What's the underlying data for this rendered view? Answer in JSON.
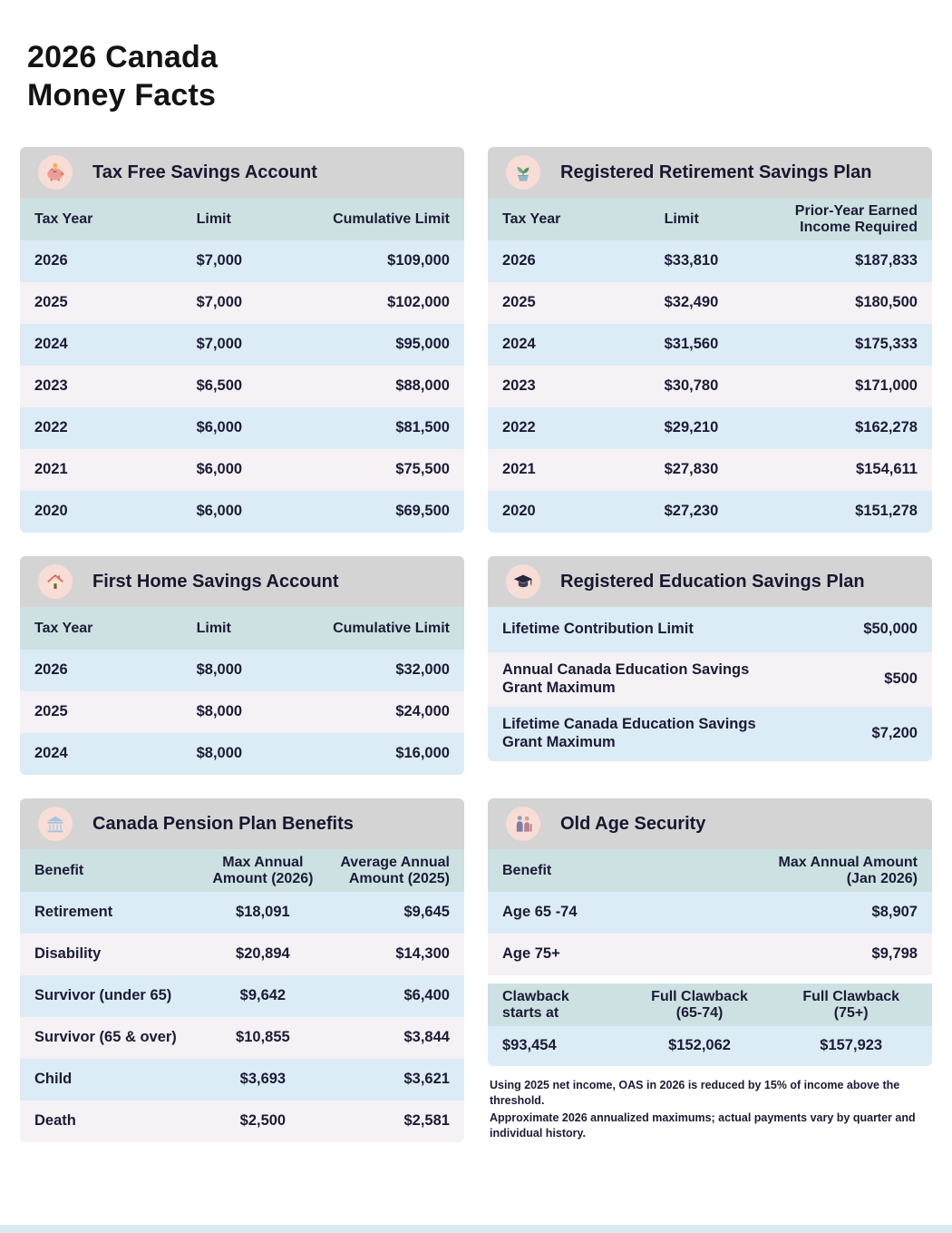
{
  "page": {
    "title_line1": "2026 Canada",
    "title_line2": "Money Facts"
  },
  "colors": {
    "card_header_bar": "#d4d4d4",
    "icon_circle": "#f8ddd7",
    "column_header": "#cde1e2",
    "row_blue": "#dcecf7",
    "row_pink": "#f6f1f5",
    "text": "#1b1b36",
    "footer_strip": "#d9eaf3"
  },
  "cards": {
    "tfsa": {
      "title": "Tax Free Savings Account",
      "icon": "piggy-bank-icon",
      "columns": [
        "Tax Year",
        "Limit",
        "Cumulative Limit"
      ],
      "rows": [
        [
          "2026",
          "$7,000",
          "$109,000"
        ],
        [
          "2025",
          "$7,000",
          "$102,000"
        ],
        [
          "2024",
          "$7,000",
          "$95,000"
        ],
        [
          "2023",
          "$6,500",
          "$88,000"
        ],
        [
          "2022",
          "$6,000",
          "$81,500"
        ],
        [
          "2021",
          "$6,000",
          "$75,500"
        ],
        [
          "2020",
          "$6,000",
          "$69,500"
        ]
      ]
    },
    "rrsp": {
      "title": "Registered Retirement Savings Plan",
      "icon": "retirement-savings-icon",
      "columns": [
        "Tax Year",
        "Limit",
        "Prior-Year Earned Income Required"
      ],
      "rows": [
        [
          "2026",
          "$33,810",
          "$187,833"
        ],
        [
          "2025",
          "$32,490",
          "$180,500"
        ],
        [
          "2024",
          "$31,560",
          "$175,333"
        ],
        [
          "2023",
          "$30,780",
          "$171,000"
        ],
        [
          "2022",
          "$29,210",
          "$162,278"
        ],
        [
          "2021",
          "$27,830",
          "$154,611"
        ],
        [
          "2020",
          "$27,230",
          "$151,278"
        ]
      ]
    },
    "fhsa": {
      "title": "First Home Savings Account",
      "icon": "house-icon",
      "columns": [
        "Tax Year",
        "Limit",
        "Cumulative Limit"
      ],
      "rows": [
        [
          "2026",
          "$8,000",
          "$32,000"
        ],
        [
          "2025",
          "$8,000",
          "$24,000"
        ],
        [
          "2024",
          "$8,000",
          "$16,000"
        ]
      ]
    },
    "resp": {
      "title": "Registered Education Savings Plan",
      "icon": "graduation-cap-icon",
      "rows": [
        [
          "Lifetime Contribution Limit",
          "$50,000"
        ],
        [
          "Annual Canada Education Savings Grant Maximum",
          "$500"
        ],
        [
          "Lifetime Canada Education Savings Grant Maximum",
          "$7,200"
        ]
      ]
    },
    "cpp": {
      "title": "Canada Pension Plan Benefits",
      "icon": "bank-icon",
      "columns": [
        "Benefit",
        "Max Annual Amount (2026)",
        "Average Annual Amount (2025)"
      ],
      "rows": [
        [
          "Retirement",
          "$18,091",
          "$9,645"
        ],
        [
          "Disability",
          "$20,894",
          "$14,300"
        ],
        [
          "Survivor (under 65)",
          "$9,642",
          "$6,400"
        ],
        [
          "Survivor (65 & over)",
          "$10,855",
          "$3,844"
        ],
        [
          "Child",
          "$3,693",
          "$3,621"
        ],
        [
          "Death",
          "$2,500",
          "$2,581"
        ]
      ]
    },
    "oas": {
      "title": "Old Age Security",
      "icon": "elderly-couple-icon",
      "columns": [
        "Benefit",
        "Max Annual Amount (Jan 2026)"
      ],
      "rows": [
        [
          "Age 65 -74",
          "$8,907"
        ],
        [
          "Age 75+",
          "$9,798"
        ]
      ],
      "clawback_columns": [
        "Clawback starts at",
        "Full Clawback (65-74)",
        "Full Clawback (75+)"
      ],
      "clawback_rows": [
        [
          "$93,454",
          "$152,062",
          "$157,923"
        ]
      ],
      "footnotes": [
        "Using 2025 net income, OAS in 2026 is reduced by 15% of income above the threshold.",
        "Approximate 2026 annualized maximums; actual payments vary by quarter and individual history."
      ]
    }
  }
}
